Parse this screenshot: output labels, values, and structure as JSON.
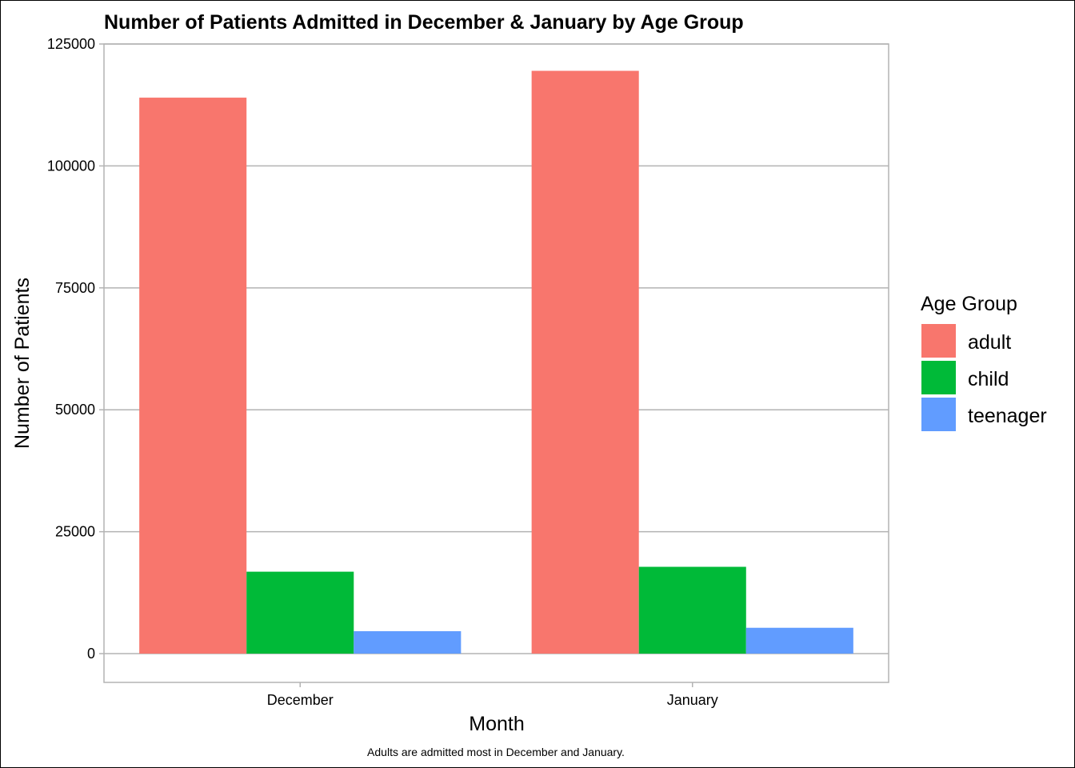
{
  "chart_data": {
    "type": "bar",
    "title": "Number of Patients Admitted in December & January by Age Group",
    "xlabel": "Month",
    "ylabel": "Number of Patients",
    "caption": "Adults are admitted most in December and January.",
    "categories": [
      "December",
      "January"
    ],
    "series": [
      {
        "name": "adult",
        "color": "#F8766D",
        "values": [
          114000,
          119500
        ]
      },
      {
        "name": "child",
        "color": "#00BA38",
        "values": [
          16800,
          17800
        ]
      },
      {
        "name": "teenager",
        "color": "#619CFF",
        "values": [
          4600,
          5300
        ]
      }
    ],
    "ylim": [
      -5900,
      125000
    ],
    "yticks": [
      0,
      25000,
      50000,
      75000,
      100000,
      125000
    ],
    "ytick_labels": [
      "0",
      "25000",
      "50000",
      "75000",
      "100000",
      "125000"
    ],
    "grid": true,
    "legend": {
      "title": "Age Group",
      "position": "right"
    }
  }
}
